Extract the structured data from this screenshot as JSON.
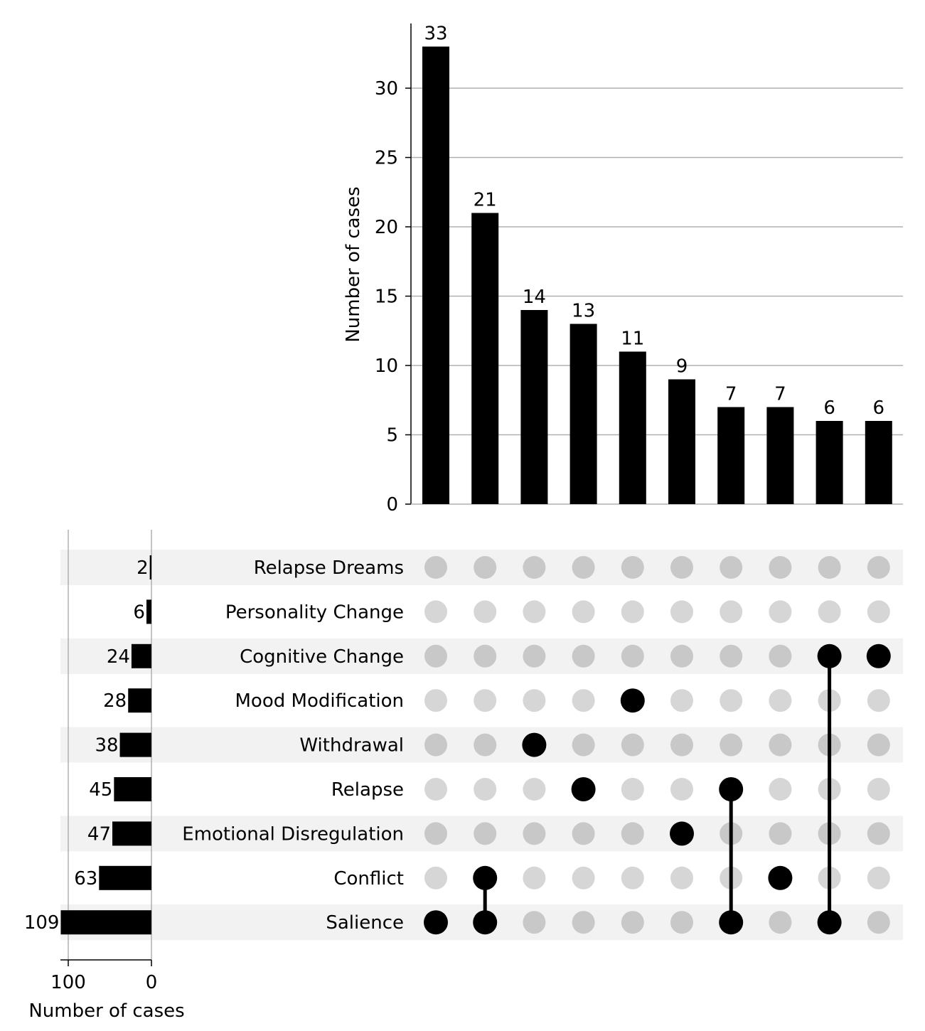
{
  "chart_data": {
    "type": "upset",
    "intersection_chart": {
      "type": "bar",
      "ylabel": "Number of cases",
      "ylim": [
        0,
        34.65
      ],
      "yticks": [
        0,
        5,
        10,
        15,
        20,
        25,
        30
      ],
      "grid": true,
      "values": [
        33,
        21,
        14,
        13,
        11,
        9,
        7,
        7,
        6,
        6
      ],
      "data_labels": [
        "33",
        "21",
        "14",
        "13",
        "11",
        "9",
        "7",
        "7",
        "6",
        "6"
      ]
    },
    "sets": [
      "Relapse Dreams",
      "Personality Change",
      "Cognitive Change",
      "Mood Modification",
      "Withdrawal",
      "Relapse",
      "Emotional Disregulation",
      "Conflict",
      "Salience"
    ],
    "set_size_chart": {
      "type": "bar",
      "orientation": "horizontal",
      "xlabel": "Number of cases",
      "xticks": [
        100,
        0
      ],
      "values": [
        2,
        6,
        24,
        28,
        38,
        45,
        47,
        63,
        109
      ],
      "data_labels": [
        "2",
        "6",
        "24",
        "28",
        "38",
        "45",
        "47",
        "63",
        "109"
      ]
    },
    "intersections": [
      [
        "Salience"
      ],
      [
        "Conflict",
        "Salience"
      ],
      [
        "Withdrawal"
      ],
      [
        "Relapse"
      ],
      [
        "Mood Modification"
      ],
      [
        "Emotional Disregulation"
      ],
      [
        "Relapse",
        "Salience"
      ],
      [
        "Conflict"
      ],
      [
        "Cognitive Change",
        "Salience"
      ],
      [
        "Cognitive Change"
      ]
    ],
    "colors": {
      "bar": "#000000",
      "active_dot": "#000000",
      "inactive_dot_shaded": "#c8c8c8",
      "inactive_dot_plain": "#d6d6d6",
      "band": "#f2f2f2",
      "grid": "#b0b0b0"
    }
  }
}
